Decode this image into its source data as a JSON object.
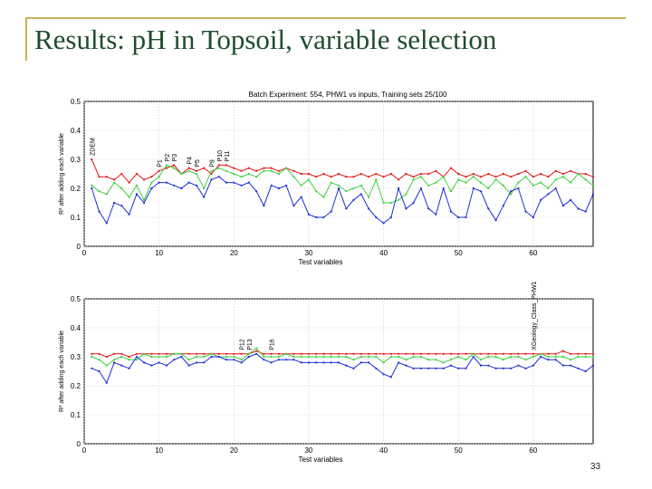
{
  "slide": {
    "title": "Results: pH in Topsoil, variable selection",
    "page_number": "33"
  },
  "colors": {
    "title": "#1f4c2e",
    "accent": "#c9b05a",
    "red": "#e21818",
    "green": "#3fd13f",
    "blue": "#1e2fd6"
  },
  "chart_data": [
    {
      "type": "line",
      "title": "Batch Experiment: 554, PHW1 vs inputs, Training sets 25/100",
      "xlabel": "Test variables",
      "ylabel": "R² after adding each variable",
      "xlim": [
        0,
        68
      ],
      "ylim": [
        0,
        0.5
      ],
      "xticks": [
        0,
        10,
        20,
        30,
        40,
        50,
        60
      ],
      "yticks": [
        0,
        0.1,
        0.2,
        0.3,
        0.4,
        0.5
      ],
      "ytick_labels": [
        "0",
        "0.1",
        "0.2",
        "0.3",
        "0.4",
        "0.5"
      ],
      "grid": true,
      "x": [
        1,
        2,
        3,
        4,
        5,
        6,
        7,
        8,
        9,
        10,
        11,
        12,
        13,
        14,
        15,
        16,
        17,
        18,
        19,
        20,
        21,
        22,
        23,
        24,
        25,
        26,
        27,
        28,
        29,
        30,
        31,
        32,
        33,
        34,
        35,
        36,
        37,
        38,
        39,
        40,
        41,
        42,
        43,
        44,
        45,
        46,
        47,
        48,
        49,
        50,
        51,
        52,
        53,
        54,
        55,
        56,
        57,
        58,
        59,
        60,
        61,
        62,
        63,
        64,
        65,
        66,
        67,
        68
      ],
      "series": [
        {
          "color": "red",
          "values": [
            0.3,
            0.24,
            0.24,
            0.23,
            0.25,
            0.22,
            0.25,
            0.23,
            0.24,
            0.26,
            0.27,
            0.28,
            0.25,
            0.27,
            0.26,
            0.27,
            0.25,
            0.28,
            0.28,
            0.27,
            0.26,
            0.27,
            0.26,
            0.27,
            0.27,
            0.26,
            0.27,
            0.26,
            0.25,
            0.25,
            0.24,
            0.25,
            0.24,
            0.25,
            0.24,
            0.24,
            0.25,
            0.24,
            0.25,
            0.24,
            0.25,
            0.23,
            0.25,
            0.24,
            0.25,
            0.25,
            0.26,
            0.24,
            0.27,
            0.25,
            0.24,
            0.25,
            0.24,
            0.25,
            0.24,
            0.25,
            0.24,
            0.25,
            0.26,
            0.24,
            0.25,
            0.24,
            0.26,
            0.25,
            0.26,
            0.25,
            0.25,
            0.24
          ]
        },
        {
          "color": "green",
          "values": [
            0.21,
            0.19,
            0.18,
            0.22,
            0.2,
            0.17,
            0.21,
            0.16,
            0.22,
            0.24,
            0.28,
            0.27,
            0.25,
            0.26,
            0.25,
            0.2,
            0.26,
            0.27,
            0.26,
            0.25,
            0.24,
            0.25,
            0.24,
            0.26,
            0.26,
            0.25,
            0.27,
            0.24,
            0.21,
            0.23,
            0.19,
            0.17,
            0.22,
            0.21,
            0.19,
            0.2,
            0.21,
            0.17,
            0.23,
            0.15,
            0.15,
            0.16,
            0.18,
            0.23,
            0.24,
            0.21,
            0.22,
            0.24,
            0.19,
            0.23,
            0.22,
            0.24,
            0.22,
            0.2,
            0.23,
            0.21,
            0.18,
            0.22,
            0.24,
            0.21,
            0.22,
            0.2,
            0.23,
            0.24,
            0.22,
            0.25,
            0.23,
            0.21
          ]
        },
        {
          "color": "blue",
          "values": [
            0.2,
            0.12,
            0.08,
            0.15,
            0.14,
            0.11,
            0.18,
            0.15,
            0.2,
            0.22,
            0.22,
            0.21,
            0.2,
            0.22,
            0.21,
            0.17,
            0.23,
            0.24,
            0.22,
            0.22,
            0.21,
            0.22,
            0.19,
            0.14,
            0.21,
            0.2,
            0.21,
            0.14,
            0.17,
            0.11,
            0.1,
            0.1,
            0.12,
            0.2,
            0.13,
            0.16,
            0.18,
            0.13,
            0.1,
            0.08,
            0.1,
            0.2,
            0.13,
            0.15,
            0.2,
            0.13,
            0.11,
            0.2,
            0.12,
            0.1,
            0.1,
            0.2,
            0.19,
            0.13,
            0.09,
            0.14,
            0.19,
            0.2,
            0.12,
            0.1,
            0.16,
            0.18,
            0.2,
            0.14,
            0.16,
            0.13,
            0.12,
            0.18
          ]
        }
      ],
      "annotations": [
        {
          "text": "ZDEM",
          "x": 1
        },
        {
          "text": "P1",
          "x": 10
        },
        {
          "text": "P2",
          "x": 11
        },
        {
          "text": "P3",
          "x": 12
        },
        {
          "text": "P4",
          "x": 14
        },
        {
          "text": "P5",
          "x": 15
        },
        {
          "text": "P9",
          "x": 17
        },
        {
          "text": "P10",
          "x": 18
        },
        {
          "text": "P11",
          "x": 19
        }
      ]
    },
    {
      "type": "line",
      "xlabel": "Test variables",
      "ylabel": "R² after adding each variable",
      "xlim": [
        0,
        68
      ],
      "ylim": [
        0,
        0.5
      ],
      "xticks": [
        0,
        10,
        20,
        30,
        40,
        50,
        60
      ],
      "yticks": [
        0,
        0.1,
        0.2,
        0.3,
        0.4,
        0.5
      ],
      "ytick_labels": [
        "0",
        "0.1",
        "0.2",
        "0.3",
        "0.4",
        "0.5"
      ],
      "grid": true,
      "x": [
        1,
        2,
        3,
        4,
        5,
        6,
        7,
        8,
        9,
        10,
        11,
        12,
        13,
        14,
        15,
        16,
        17,
        18,
        19,
        20,
        21,
        22,
        23,
        24,
        25,
        26,
        27,
        28,
        29,
        30,
        31,
        32,
        33,
        34,
        35,
        36,
        37,
        38,
        39,
        40,
        41,
        42,
        43,
        44,
        45,
        46,
        47,
        48,
        49,
        50,
        51,
        52,
        53,
        54,
        55,
        56,
        57,
        58,
        59,
        60,
        61,
        62,
        63,
        64,
        65,
        66,
        67,
        68
      ],
      "series": [
        {
          "color": "red",
          "values": [
            0.31,
            0.31,
            0.3,
            0.31,
            0.31,
            0.3,
            0.31,
            0.31,
            0.31,
            0.31,
            0.31,
            0.31,
            0.31,
            0.31,
            0.31,
            0.31,
            0.31,
            0.31,
            0.31,
            0.31,
            0.31,
            0.31,
            0.32,
            0.31,
            0.31,
            0.31,
            0.31,
            0.31,
            0.31,
            0.31,
            0.31,
            0.31,
            0.31,
            0.31,
            0.31,
            0.31,
            0.31,
            0.31,
            0.31,
            0.31,
            0.31,
            0.31,
            0.31,
            0.31,
            0.31,
            0.31,
            0.31,
            0.31,
            0.31,
            0.31,
            0.31,
            0.31,
            0.31,
            0.31,
            0.31,
            0.31,
            0.31,
            0.31,
            0.31,
            0.31,
            0.31,
            0.31,
            0.31,
            0.32,
            0.31,
            0.31,
            0.31,
            0.31
          ]
        },
        {
          "color": "green",
          "values": [
            0.3,
            0.29,
            0.27,
            0.29,
            0.3,
            0.29,
            0.29,
            0.31,
            0.3,
            0.3,
            0.3,
            0.31,
            0.31,
            0.29,
            0.3,
            0.3,
            0.31,
            0.3,
            0.3,
            0.3,
            0.29,
            0.31,
            0.33,
            0.3,
            0.3,
            0.3,
            0.31,
            0.3,
            0.3,
            0.3,
            0.3,
            0.3,
            0.3,
            0.3,
            0.3,
            0.29,
            0.3,
            0.3,
            0.3,
            0.28,
            0.3,
            0.3,
            0.29,
            0.3,
            0.3,
            0.29,
            0.29,
            0.28,
            0.29,
            0.3,
            0.29,
            0.31,
            0.29,
            0.3,
            0.3,
            0.29,
            0.3,
            0.3,
            0.29,
            0.3,
            0.31,
            0.3,
            0.3,
            0.3,
            0.29,
            0.3,
            0.3,
            0.3
          ]
        },
        {
          "color": "blue",
          "values": [
            0.26,
            0.25,
            0.21,
            0.28,
            0.27,
            0.26,
            0.3,
            0.28,
            0.27,
            0.28,
            0.27,
            0.29,
            0.3,
            0.27,
            0.28,
            0.28,
            0.3,
            0.3,
            0.29,
            0.29,
            0.28,
            0.3,
            0.31,
            0.29,
            0.28,
            0.29,
            0.29,
            0.29,
            0.28,
            0.28,
            0.28,
            0.28,
            0.28,
            0.28,
            0.27,
            0.26,
            0.28,
            0.28,
            0.26,
            0.24,
            0.23,
            0.28,
            0.27,
            0.26,
            0.26,
            0.26,
            0.26,
            0.26,
            0.27,
            0.26,
            0.26,
            0.3,
            0.27,
            0.27,
            0.26,
            0.26,
            0.26,
            0.27,
            0.26,
            0.27,
            0.3,
            0.29,
            0.29,
            0.27,
            0.27,
            0.26,
            0.25,
            0.27
          ]
        }
      ],
      "annotations": [
        {
          "text": "P12",
          "x": 21
        },
        {
          "text": "P13",
          "x": 22
        },
        {
          "text": "P16",
          "x": 25
        },
        {
          "text": "XGeology_Class_PHW1",
          "x": 60
        }
      ]
    }
  ]
}
